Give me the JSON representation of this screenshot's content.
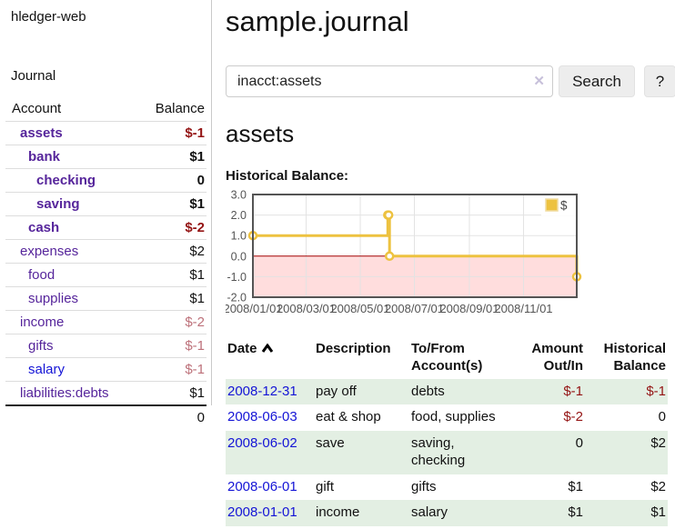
{
  "colors": {
    "purple": "#56259b",
    "blue": "#1414d6",
    "dark_red": "#941414",
    "rose": "#bd717a",
    "black": "#111111",
    "row_green": "#e3efe3",
    "gold": "#edc240"
  },
  "sidebar": {
    "app_title": "hledger-web",
    "nav_journal": "Journal",
    "accounts_table": {
      "header_account": "Account",
      "header_balance": "Balance",
      "rows": [
        {
          "account": "assets",
          "balance": "$-1",
          "indent": 1,
          "bold": true,
          "balance_color": "dark_red",
          "link_color": "purple"
        },
        {
          "account": "bank",
          "balance": "$1",
          "indent": 2,
          "bold": true,
          "balance_color": "black",
          "link_color": "purple"
        },
        {
          "account": "checking",
          "balance": "0",
          "indent": 3,
          "bold": true,
          "balance_color": "black",
          "link_color": "purple"
        },
        {
          "account": "saving",
          "balance": "$1",
          "indent": 3,
          "bold": true,
          "balance_color": "black",
          "link_color": "purple"
        },
        {
          "account": "cash",
          "balance": "$-2",
          "indent": 2,
          "bold": true,
          "balance_color": "dark_red",
          "link_color": "purple"
        },
        {
          "account": "expenses",
          "balance": "$2",
          "indent": 1,
          "bold": false,
          "balance_color": "black",
          "link_color": "purple"
        },
        {
          "account": "food",
          "balance": "$1",
          "indent": 2,
          "bold": false,
          "balance_color": "black",
          "link_color": "purple"
        },
        {
          "account": "supplies",
          "balance": "$1",
          "indent": 2,
          "bold": false,
          "balance_color": "black",
          "link_color": "purple"
        },
        {
          "account": "income",
          "balance": "$-2",
          "indent": 1,
          "bold": false,
          "balance_color": "rose",
          "link_color": "purple"
        },
        {
          "account": "gifts",
          "balance": "$-1",
          "indent": 2,
          "bold": false,
          "balance_color": "rose",
          "link_color": "purple"
        },
        {
          "account": "salary",
          "balance": "$-1",
          "indent": 2,
          "bold": false,
          "balance_color": "rose",
          "link_color": "blue"
        },
        {
          "account": "liabilities:debts",
          "balance": "$1",
          "indent": 1,
          "bold": false,
          "balance_color": "black",
          "link_color": "purple"
        }
      ],
      "total": "0"
    }
  },
  "main": {
    "page_title": "sample.journal",
    "search": {
      "value": "inacct:assets",
      "clear_icon": "✕",
      "search_button": "Search",
      "help_button": "?"
    },
    "account_heading": "assets",
    "chart_title": "Historical Balance:"
  },
  "chart_data": {
    "type": "line",
    "step": true,
    "title": "Historical Balance:",
    "series": [
      {
        "name": "$",
        "color": "#edc240",
        "points": [
          [
            "2008-01-01",
            1
          ],
          [
            "2008-06-01",
            2
          ],
          [
            "2008-06-02",
            2
          ],
          [
            "2008-06-03",
            0
          ],
          [
            "2008-12-31",
            -1
          ]
        ]
      }
    ],
    "x_range": [
      "2008-01-01",
      "2008-12-31"
    ],
    "ylim": [
      -2,
      3
    ],
    "y_ticks": [
      "3.0",
      "2.0",
      "1.0",
      "0.0",
      "-1.0",
      "-2.0"
    ],
    "x_ticks": [
      {
        "date": "2008-01-01",
        "label": "2008/01/01"
      },
      {
        "date": "2008-03-01",
        "label": "2008/03/01"
      },
      {
        "date": "2008-05-01",
        "label": "2008/05/01"
      },
      {
        "date": "2008-07-01",
        "label": "2008/07/01"
      },
      {
        "date": "2008-09-01",
        "label": "2008/09/01"
      },
      {
        "date": "2008-11-01",
        "label": "2008/11/01"
      }
    ],
    "grid": true,
    "negative_region_color": "#ffdddd",
    "zero_line_color": "#a40000",
    "axis_color": "#545454",
    "legend": {
      "label": "$",
      "position": "top-right"
    }
  },
  "register_table": {
    "headers": [
      {
        "label": "Date",
        "align": "left",
        "sorted_asc": true
      },
      {
        "label": "Description",
        "align": "left"
      },
      {
        "label": "To/From Account(s)",
        "align": "left"
      },
      {
        "label": "Amount Out/In",
        "align": "right"
      },
      {
        "label": "Historical Balance",
        "align": "right"
      }
    ],
    "rows": [
      {
        "date": "2008-12-31",
        "description": "pay off",
        "accounts": "debts",
        "amount": "$-1",
        "amount_color": "dark_red",
        "balance": "$-1",
        "balance_color": "dark_red"
      },
      {
        "date": "2008-06-03",
        "description": "eat & shop",
        "accounts": "food, supplies",
        "amount": "$-2",
        "amount_color": "dark_red",
        "balance": "0",
        "balance_color": "black"
      },
      {
        "date": "2008-06-02",
        "description": "save",
        "accounts": "saving, checking",
        "amount": "0",
        "amount_color": "black",
        "balance": "$2",
        "balance_color": "black"
      },
      {
        "date": "2008-06-01",
        "description": "gift",
        "accounts": "gifts",
        "amount": "$1",
        "amount_color": "black",
        "balance": "$2",
        "balance_color": "black"
      },
      {
        "date": "2008-01-01",
        "description": "income",
        "accounts": "salary",
        "amount": "$1",
        "amount_color": "black",
        "balance": "$1",
        "balance_color": "black"
      }
    ]
  }
}
